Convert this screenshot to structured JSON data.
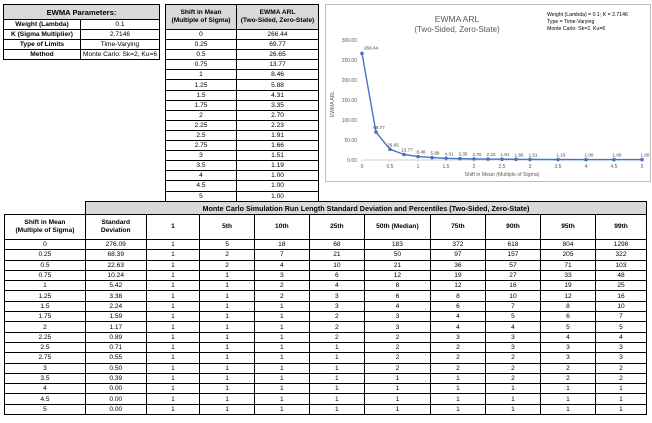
{
  "params": {
    "title": "EWMA Parameters:",
    "rows": [
      {
        "label": "Weight (Lambda)",
        "value": "0.1"
      },
      {
        "label": "K (Sigma Multiplier)",
        "value": "2.7146"
      },
      {
        "label": "Type of Limits",
        "value": "Time-Varying"
      },
      {
        "label": "Method",
        "value": "Monte Carlo: Sk=2, Ku=6"
      }
    ]
  },
  "arl_table": {
    "col1": "Shift in Mean\n(Multiple of Sigma)",
    "col1_l1": "Shift in Mean",
    "col1_l2": "(Multiple of Sigma)",
    "col2_l1": "EWMA ARL",
    "col2_l2": "(Two-Sided, Zero-State)",
    "rows": [
      [
        "0",
        "266.44"
      ],
      [
        "0.25",
        "69.77"
      ],
      [
        "0.5",
        "26.65"
      ],
      [
        "0.75",
        "13.77"
      ],
      [
        "1",
        "8.46"
      ],
      [
        "1.25",
        "5.88"
      ],
      [
        "1.5",
        "4.31"
      ],
      [
        "1.75",
        "3.35"
      ],
      [
        "2",
        "2.70"
      ],
      [
        "2.25",
        "2.23"
      ],
      [
        "2.5",
        "1.91"
      ],
      [
        "2.75",
        "1.66"
      ],
      [
        "3",
        "1.51"
      ],
      [
        "3.5",
        "1.19"
      ],
      [
        "4",
        "1.00"
      ],
      [
        "4.5",
        "1.00"
      ],
      [
        "5",
        "1.00"
      ]
    ]
  },
  "chart_data": {
    "type": "line",
    "title": "EWMA ARL",
    "subtitle": "(Two-Sided, Zero-State)",
    "xlabel": "Shift in Mean (Multiple of Sigma)",
    "ylabel": "EWMA ARL",
    "annotation": [
      "Weight (Lambda) = 0.1; K = 2.7146",
      "Type = Time-Varying",
      "Monte Carlo: Sk=2, Ku=6"
    ],
    "x": [
      0,
      0.25,
      0.5,
      0.75,
      1,
      1.25,
      1.5,
      1.75,
      2,
      2.25,
      2.5,
      2.75,
      3,
      3.5,
      4,
      4.5,
      5
    ],
    "y": [
      266.44,
      69.77,
      26.65,
      13.77,
      8.46,
      5.88,
      4.31,
      3.35,
      2.7,
      2.23,
      1.91,
      1.66,
      1.51,
      1.19,
      1.0,
      1.0,
      1.0
    ],
    "labels": [
      "266.44",
      "69.77",
      "26.65",
      "13.77",
      "8.46",
      "5.88",
      "4.31",
      "3.35",
      "2.70",
      "2.23",
      "1.91",
      "1.66",
      "1.51",
      "1.19",
      "1.00",
      "1.00",
      "1.00"
    ],
    "xticks": [
      0,
      0.5,
      1,
      1.5,
      2,
      2.5,
      3,
      3.5,
      4,
      4.5,
      5
    ],
    "xtick_labels": [
      "0",
      "0.5",
      "1",
      "1.5",
      "2",
      "2.5",
      "3",
      "3.5",
      "4",
      "4.5",
      "5"
    ],
    "yticks": [
      0,
      50,
      100,
      150,
      200,
      250,
      300
    ],
    "ytick_labels": [
      "0.00",
      "50.00",
      "100.00",
      "150.00",
      "200.00",
      "250.00",
      "300.00"
    ],
    "xlim": [
      0,
      5
    ],
    "ylim": [
      0,
      300
    ],
    "grid": false,
    "color": "#4472c4"
  },
  "mc_table": {
    "title": "Monte Carlo Simulation Run Length Standard Deviation and Percentiles (Two-Sided, Zero-State)",
    "headers": [
      [
        "Shift in Mean",
        "(Multiple of Sigma)"
      ],
      [
        "Standard",
        "Deviation"
      ],
      [
        "1",
        ""
      ],
      [
        "5th",
        ""
      ],
      [
        "10th",
        ""
      ],
      [
        "25th",
        ""
      ],
      [
        "50th (Median)",
        ""
      ],
      [
        "75th",
        ""
      ],
      [
        "90th",
        ""
      ],
      [
        "95th",
        ""
      ],
      [
        "99th",
        ""
      ]
    ],
    "rows": [
      [
        "0",
        "276.09",
        "1",
        "5",
        "18",
        "68",
        "183",
        "372",
        "618",
        "804",
        "1298"
      ],
      [
        "0.25",
        "68.39",
        "1",
        "2",
        "7",
        "21",
        "50",
        "97",
        "157",
        "205",
        "322"
      ],
      [
        "0.5",
        "22.63",
        "1",
        "2",
        "4",
        "10",
        "21",
        "36",
        "57",
        "71",
        "103"
      ],
      [
        "0.75",
        "10.24",
        "1",
        "1",
        "3",
        "6",
        "12",
        "19",
        "27",
        "33",
        "48"
      ],
      [
        "1",
        "5.42",
        "1",
        "1",
        "2",
        "4",
        "8",
        "12",
        "16",
        "19",
        "25"
      ],
      [
        "1.25",
        "3.38",
        "1",
        "1",
        "2",
        "3",
        "6",
        "8",
        "10",
        "12",
        "16"
      ],
      [
        "1.5",
        "2.24",
        "1",
        "1",
        "1",
        "3",
        "4",
        "6",
        "7",
        "8",
        "10"
      ],
      [
        "1.75",
        "1.59",
        "1",
        "1",
        "1",
        "2",
        "3",
        "4",
        "5",
        "6",
        "7"
      ],
      [
        "2",
        "1.17",
        "1",
        "1",
        "1",
        "2",
        "3",
        "4",
        "4",
        "5",
        "5"
      ],
      [
        "2.25",
        "0.89",
        "1",
        "1",
        "1",
        "2",
        "2",
        "3",
        "3",
        "4",
        "4"
      ],
      [
        "2.5",
        "0.71",
        "1",
        "1",
        "1",
        "1",
        "2",
        "2",
        "3",
        "3",
        "3"
      ],
      [
        "2.75",
        "0.55",
        "1",
        "1",
        "1",
        "1",
        "2",
        "2",
        "2",
        "3",
        "3"
      ],
      [
        "3",
        "0.50",
        "1",
        "1",
        "1",
        "1",
        "2",
        "2",
        "2",
        "2",
        "2"
      ],
      [
        "3.5",
        "0.39",
        "1",
        "1",
        "1",
        "1",
        "1",
        "1",
        "2",
        "2",
        "2"
      ],
      [
        "4",
        "0.00",
        "1",
        "1",
        "1",
        "1",
        "1",
        "1",
        "1",
        "1",
        "1"
      ],
      [
        "4.5",
        "0.00",
        "1",
        "1",
        "1",
        "1",
        "1",
        "1",
        "1",
        "1",
        "1"
      ],
      [
        "5",
        "0.00",
        "1",
        "1",
        "1",
        "1",
        "1",
        "1",
        "1",
        "1",
        "1"
      ]
    ]
  }
}
